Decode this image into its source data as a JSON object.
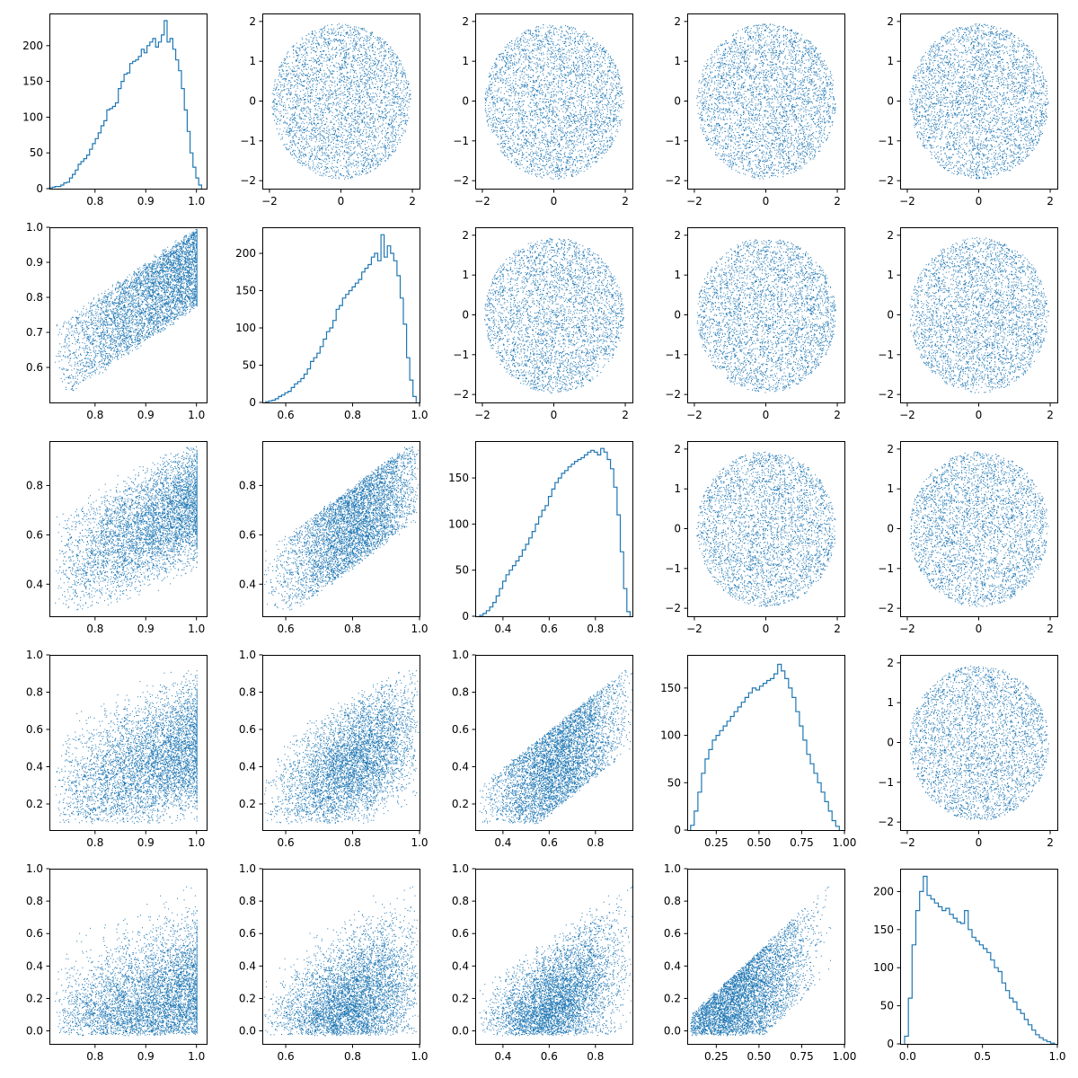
{
  "colors": {
    "series": "#1f77b4",
    "background": "#ffffff",
    "axes": "#000000"
  },
  "chart_data": {
    "type": "scatter",
    "description_type": "pairplot",
    "grid": false,
    "legend": "none",
    "variables": [
      {
        "index": 0,
        "range": [
          0.71,
          1.02
        ],
        "ticks": [
          0.8,
          0.9,
          1.0
        ],
        "tick_labels": [
          "0.8",
          "0.9",
          "1.0"
        ]
      },
      {
        "index": 1,
        "range": [
          0.53,
          1.0
        ],
        "ticks": [
          0.6,
          0.8,
          1.0
        ],
        "tick_labels": [
          "0.6",
          "0.8",
          "1.0"
        ]
      },
      {
        "index": 2,
        "range": [
          0.28,
          0.96
        ],
        "ticks": [
          0.4,
          0.6,
          0.8
        ],
        "tick_labels": [
          "0.4",
          "0.6",
          "0.8"
        ]
      },
      {
        "index": 3,
        "range": [
          0.08,
          1.0
        ],
        "ticks": [
          0.25,
          0.5,
          0.75,
          1.0
        ],
        "tick_labels": [
          "0.25",
          "0.50",
          "0.75",
          "1.00"
        ]
      },
      {
        "index": 4,
        "range": [
          -0.05,
          1.0
        ],
        "ticks": [
          0.0,
          0.5,
          1.0
        ],
        "tick_labels": [
          "0.0",
          "0.5",
          "1.0"
        ]
      }
    ],
    "lower_y": [
      {
        "range": [
          0.5,
          1.0
        ],
        "ticks": [
          0.6,
          0.7,
          0.8,
          0.9,
          1.0
        ],
        "tick_labels": [
          "0.6",
          "0.7",
          "0.8",
          "0.9",
          "1.0"
        ]
      },
      {
        "range": [
          0.27,
          0.98
        ],
        "ticks": [
          0.4,
          0.6,
          0.8
        ],
        "tick_labels": [
          "0.4",
          "0.6",
          "0.8"
        ]
      },
      {
        "range": [
          0.06,
          1.0
        ],
        "ticks": [
          0.2,
          0.4,
          0.6,
          0.8,
          1.0
        ],
        "tick_labels": [
          "0.2",
          "0.4",
          "0.6",
          "0.8",
          "1.0"
        ]
      },
      {
        "range": [
          -0.08,
          1.0
        ],
        "ticks": [
          0.0,
          0.2,
          0.4,
          0.6,
          0.8,
          1.0
        ],
        "tick_labels": [
          "0.0",
          "0.2",
          "0.4",
          "0.6",
          "0.8",
          "1.0"
        ]
      }
    ],
    "upper": {
      "description": "uncorrelated standard-normal-like disc, radius about 2",
      "range": [
        -2.2,
        2.2
      ],
      "ticks": [
        -2,
        0,
        2
      ],
      "tick_labels": [
        "−2",
        "0",
        "2"
      ],
      "y_ticks": [
        -2,
        -1,
        0,
        1,
        2
      ],
      "y_tick_labels": [
        "−2",
        "−1",
        "0",
        "1",
        "2"
      ]
    },
    "histograms": [
      {
        "variable": 0,
        "bins_range": [
          0.71,
          1.01
        ],
        "counts": [
          1,
          2,
          3,
          3,
          5,
          8,
          9,
          15,
          20,
          26,
          34,
          38,
          42,
          47,
          55,
          63,
          70,
          78,
          88,
          95,
          110,
          112,
          115,
          120,
          140,
          150,
          160,
          162,
          175,
          178,
          180,
          185,
          195,
          190,
          200,
          205,
          210,
          198,
          205,
          215,
          235,
          205,
          210,
          195,
          180,
          165,
          140,
          110,
          80,
          50,
          30,
          15,
          5
        ],
        "ylim": [
          0,
          245
        ],
        "y_ticks": [
          0,
          50,
          100,
          150,
          200
        ],
        "y_tick_labels": [
          "0",
          "50",
          "100",
          "150",
          "200"
        ]
      },
      {
        "variable": 1,
        "bins_range": [
          0.54,
          0.99
        ],
        "counts": [
          1,
          2,
          3,
          5,
          8,
          10,
          13,
          15,
          20,
          25,
          28,
          32,
          38,
          45,
          55,
          60,
          66,
          75,
          85,
          95,
          100,
          110,
          125,
          130,
          140,
          145,
          150,
          155,
          160,
          165,
          175,
          180,
          185,
          195,
          200,
          190,
          225,
          195,
          210,
          200,
          190,
          170,
          140,
          105,
          60,
          30,
          8
        ],
        "ylim": [
          0,
          235
        ],
        "y_ticks": [
          0,
          50,
          100,
          150,
          200
        ],
        "y_tick_labels": [
          "0",
          "50",
          "100",
          "150",
          "200"
        ]
      },
      {
        "variable": 2,
        "bins_range": [
          0.3,
          0.95
        ],
        "counts": [
          1,
          3,
          6,
          10,
          15,
          22,
          30,
          38,
          45,
          50,
          55,
          60,
          65,
          72,
          78,
          85,
          92,
          100,
          108,
          115,
          120,
          130,
          138,
          145,
          150,
          155,
          158,
          162,
          165,
          168,
          170,
          172,
          175,
          178,
          180,
          178,
          175,
          182,
          178,
          170,
          160,
          140,
          110,
          70,
          30,
          5
        ],
        "ylim": [
          0,
          190
        ],
        "y_ticks": [
          0,
          50,
          100,
          150
        ],
        "y_tick_labels": [
          "0",
          "50",
          "100",
          "150"
        ]
      },
      {
        "variable": 3,
        "bins_range": [
          0.1,
          0.97
        ],
        "counts": [
          5,
          20,
          40,
          60,
          75,
          85,
          95,
          100,
          105,
          110,
          115,
          120,
          125,
          130,
          135,
          140,
          145,
          150,
          148,
          152,
          155,
          158,
          160,
          165,
          175,
          168,
          160,
          150,
          140,
          125,
          110,
          95,
          80,
          70,
          60,
          50,
          40,
          30,
          20,
          10,
          4
        ],
        "ylim": [
          0,
          185
        ],
        "y_ticks": [
          0,
          50,
          100,
          150
        ],
        "y_tick_labels": [
          "0",
          "50",
          "100",
          "150"
        ]
      },
      {
        "variable": 4,
        "bins_range": [
          -0.02,
          0.98
        ],
        "counts": [
          10,
          60,
          130,
          175,
          200,
          220,
          195,
          190,
          185,
          180,
          175,
          178,
          170,
          165,
          160,
          158,
          175,
          150,
          140,
          135,
          130,
          125,
          120,
          110,
          100,
          95,
          80,
          70,
          60,
          55,
          45,
          40,
          32,
          25,
          18,
          12,
          8,
          5,
          3,
          1
        ],
        "ylim": [
          0,
          230
        ],
        "y_ticks": [
          0,
          50,
          100,
          150,
          200
        ],
        "y_tick_labels": [
          "0",
          "50",
          "100",
          "150",
          "200"
        ]
      }
    ]
  }
}
